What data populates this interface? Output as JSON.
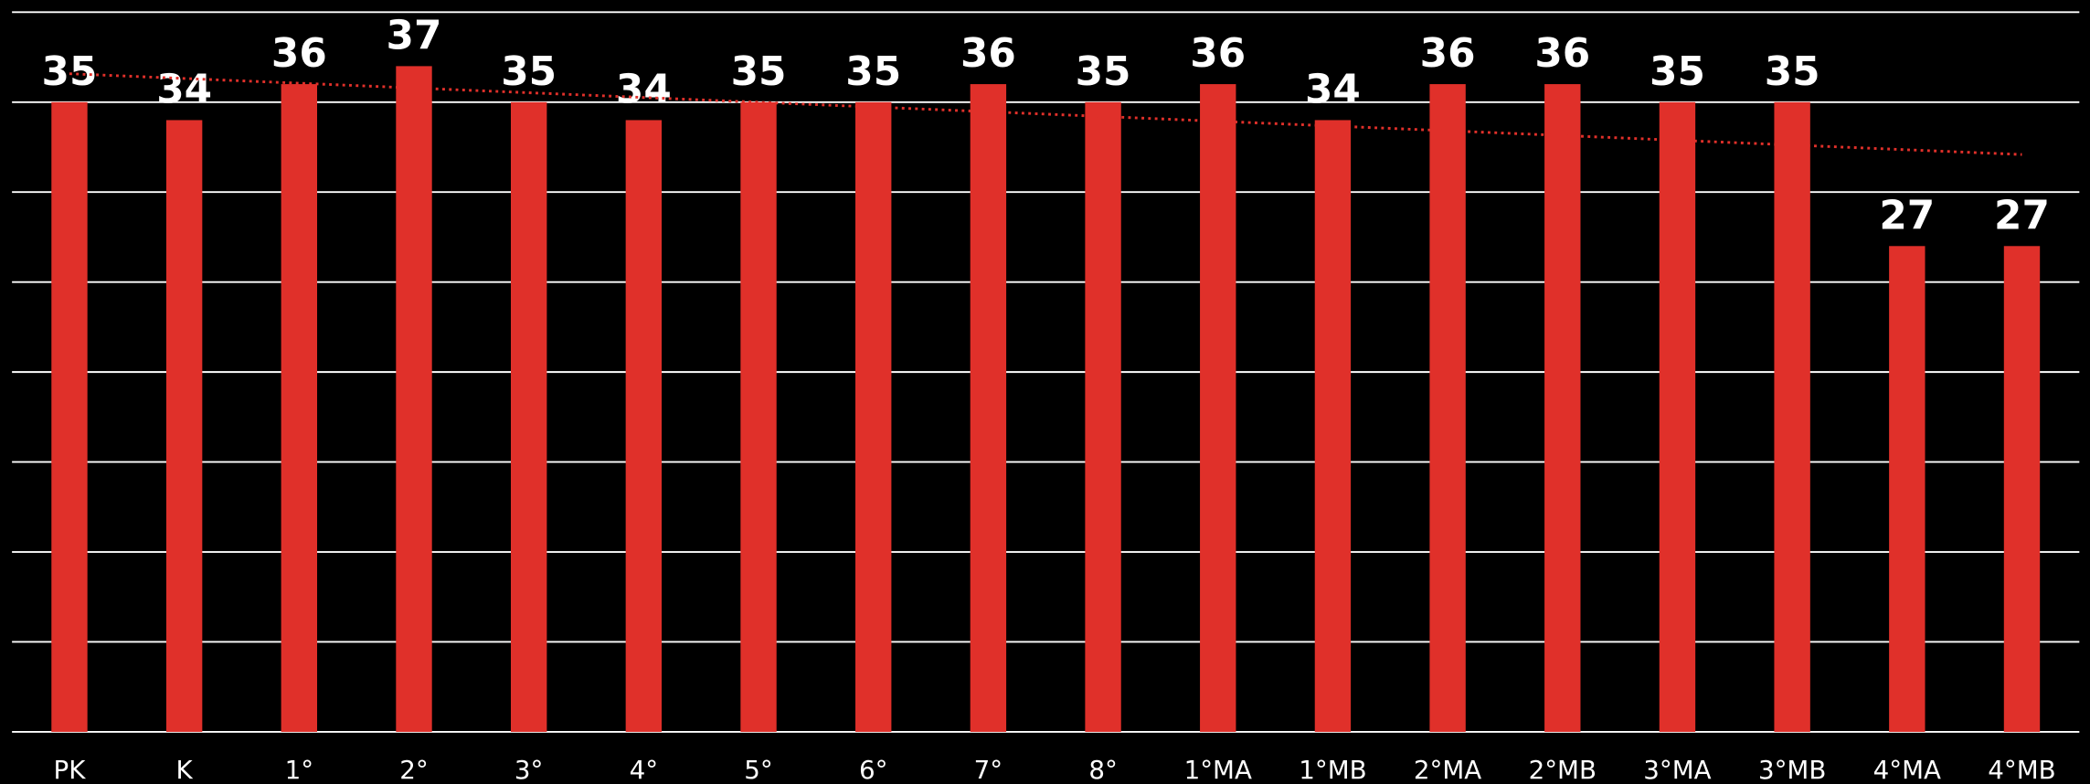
{
  "chart_data": {
    "type": "bar",
    "categories": [
      "PK",
      "K",
      "1°",
      "2°",
      "3°",
      "4°",
      "5°",
      "6°",
      "7°",
      "8°",
      "1°MA",
      "1°MB",
      "2°MA",
      "2°MB",
      "3°MA",
      "3°MB",
      "4°MA",
      "4°MB"
    ],
    "values": [
      35,
      34,
      36,
      37,
      35,
      34,
      35,
      35,
      36,
      35,
      36,
      34,
      36,
      36,
      35,
      35,
      27,
      27
    ],
    "color": "#e0302a",
    "ylim": [
      0,
      40
    ],
    "yticks": [
      0,
      5,
      10,
      15,
      20,
      25,
      30,
      35,
      40
    ],
    "grid": true,
    "grid_color": "#ffffff",
    "trendline": "linear",
    "trendline_color": "#e0302a"
  }
}
